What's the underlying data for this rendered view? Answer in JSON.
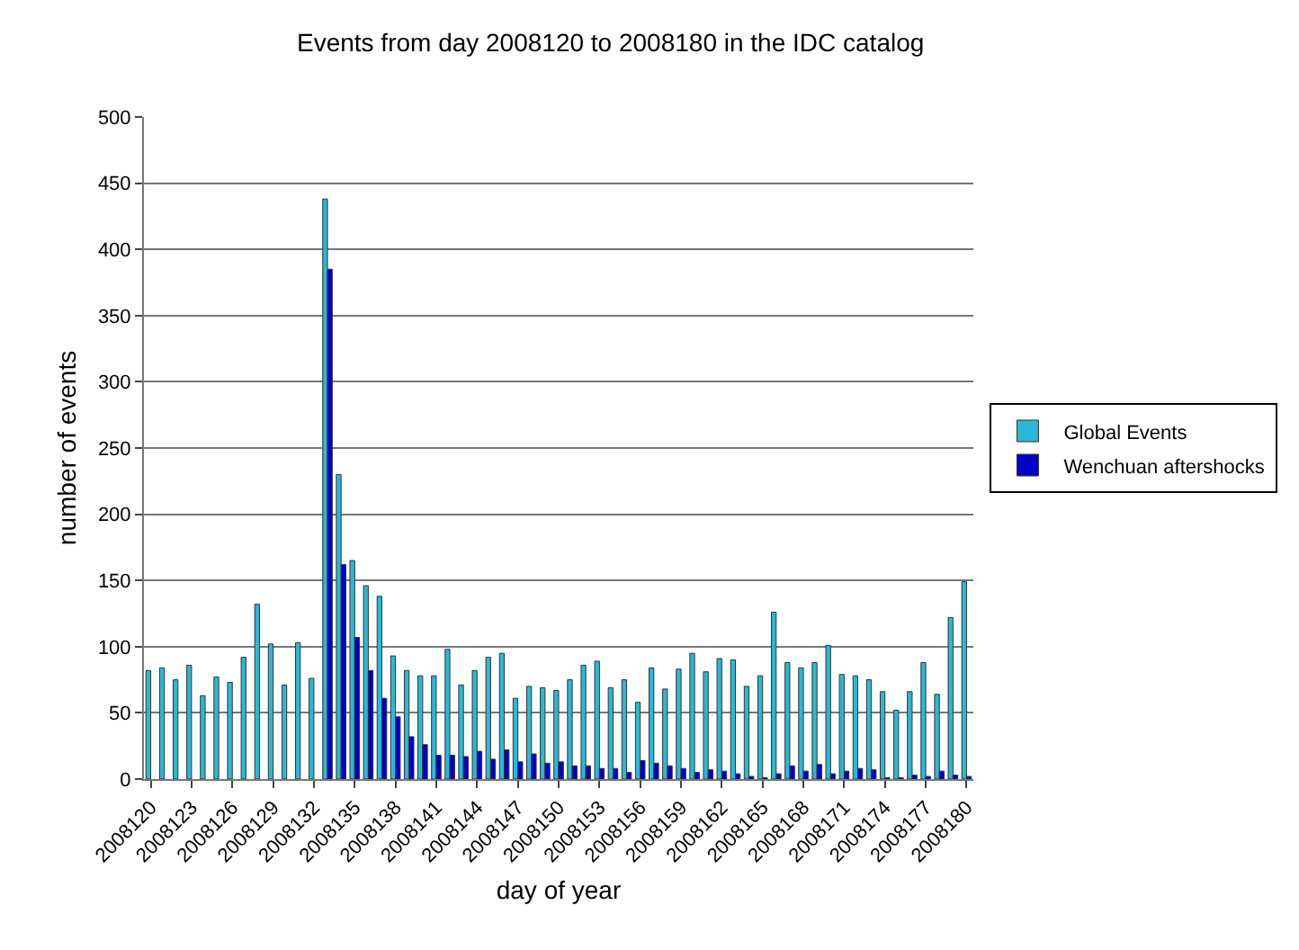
{
  "chart_data": {
    "type": "bar",
    "title": "Events from day 2008120 to 2008180 in the IDC catalog",
    "xlabel": "day of year",
    "ylabel": "number of events",
    "categories": [
      "2008120",
      null,
      null,
      "2008123",
      null,
      null,
      "2008126",
      null,
      null,
      "2008129",
      null,
      null,
      "2008132",
      null,
      null,
      "2008135",
      null,
      null,
      "2008138",
      null,
      null,
      "2008141",
      null,
      null,
      "2008144",
      null,
      null,
      "2008147",
      null,
      null,
      "2008150",
      null,
      null,
      "2008153",
      null,
      null,
      "2008156",
      null,
      null,
      "2008159",
      null,
      null,
      "2008162",
      null,
      null,
      "2008165",
      null,
      null,
      "2008168",
      null,
      null,
      "2008171",
      null,
      null,
      "2008174",
      null,
      null,
      "2008177",
      null,
      null,
      "2008180"
    ],
    "series": [
      {
        "name": "Global Events",
        "color": "#29b9d6",
        "values": [
          82,
          84,
          75,
          86,
          63,
          77,
          73,
          92,
          132,
          102,
          71,
          103,
          76,
          438,
          230,
          165,
          146,
          138,
          93,
          82,
          78,
          78,
          98,
          71,
          82,
          92,
          95,
          61,
          70,
          69,
          67,
          75,
          86,
          89,
          69,
          75,
          58,
          84,
          68,
          83,
          95,
          81,
          91,
          90,
          70,
          78,
          126,
          88,
          84,
          88,
          101,
          79,
          78,
          75,
          66,
          52,
          66,
          88,
          64,
          122,
          149
        ]
      },
      {
        "name": "Wenchuan aftershocks",
        "color": "#0000c8",
        "values": [
          null,
          null,
          null,
          null,
          null,
          null,
          null,
          null,
          null,
          null,
          null,
          null,
          null,
          385,
          162,
          107,
          82,
          61,
          47,
          32,
          26,
          18,
          18,
          17,
          21,
          15,
          22,
          13,
          19,
          12,
          13,
          10,
          10,
          8,
          8,
          5,
          14,
          12,
          10,
          8,
          5,
          7,
          6,
          4,
          2,
          1,
          4,
          10,
          6,
          11,
          4,
          6,
          8,
          7,
          1,
          1,
          3,
          2,
          6,
          3,
          2
        ]
      }
    ],
    "ylim": [
      0,
      500
    ],
    "yticks": [
      0,
      50,
      100,
      150,
      200,
      250,
      300,
      350,
      400,
      450,
      500
    ],
    "grid": "y",
    "legend": "right"
  }
}
